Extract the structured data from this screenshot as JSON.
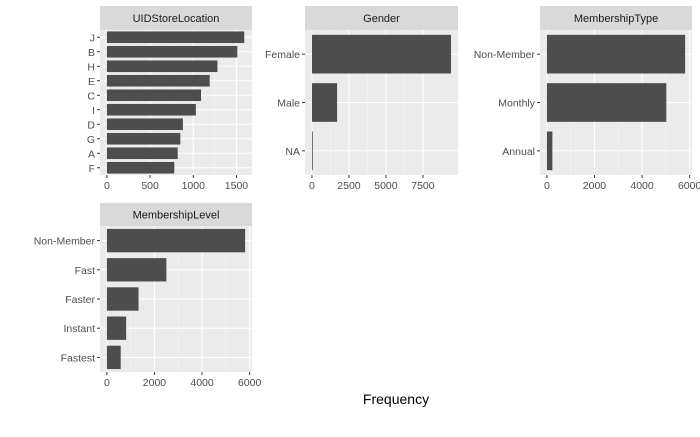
{
  "chart_data": [
    {
      "type": "bar",
      "orientation": "horizontal",
      "facet_title": "UIDStoreLocation",
      "categories": [
        "J",
        "B",
        "H",
        "E",
        "C",
        "I",
        "D",
        "G",
        "A",
        "F"
      ],
      "values": [
        1590,
        1510,
        1280,
        1190,
        1090,
        1030,
        880,
        850,
        820,
        780
      ],
      "xlim": [
        -80,
        1680
      ],
      "x_ticks": [
        0,
        500,
        1000,
        1500
      ]
    },
    {
      "type": "bar",
      "orientation": "horizontal",
      "facet_title": "Gender",
      "categories": [
        "Female",
        "Male",
        "NA"
      ],
      "values": [
        9400,
        1700,
        40
      ],
      "xlim": [
        -470,
        9870
      ],
      "x_ticks": [
        0,
        2500,
        5000,
        7500
      ]
    },
    {
      "type": "bar",
      "orientation": "horizontal",
      "facet_title": "MembershipType",
      "categories": [
        "Non-Member",
        "Monthly",
        "Annual"
      ],
      "values": [
        5810,
        5020,
        230
      ],
      "xlim": [
        -290,
        6100
      ],
      "x_ticks": [
        0,
        2000,
        4000,
        6000
      ]
    },
    {
      "type": "bar",
      "orientation": "horizontal",
      "facet_title": "MembershipLevel",
      "categories": [
        "Non-Member",
        "Fast",
        "Faster",
        "Instant",
        "Fastest"
      ],
      "values": [
        5810,
        2500,
        1330,
        810,
        580
      ],
      "xlim": [
        -290,
        6100
      ],
      "x_ticks": [
        0,
        2000,
        4000,
        6000
      ]
    }
  ],
  "xlabel": "Frequency",
  "colors": {
    "bar": "#4d4d4d",
    "panel_background": "#ebebeb",
    "grid_major": "#ffffff",
    "grid_minor": "#f5f5f5",
    "strip_background": "#d9d9d9",
    "tick": "#333333"
  }
}
